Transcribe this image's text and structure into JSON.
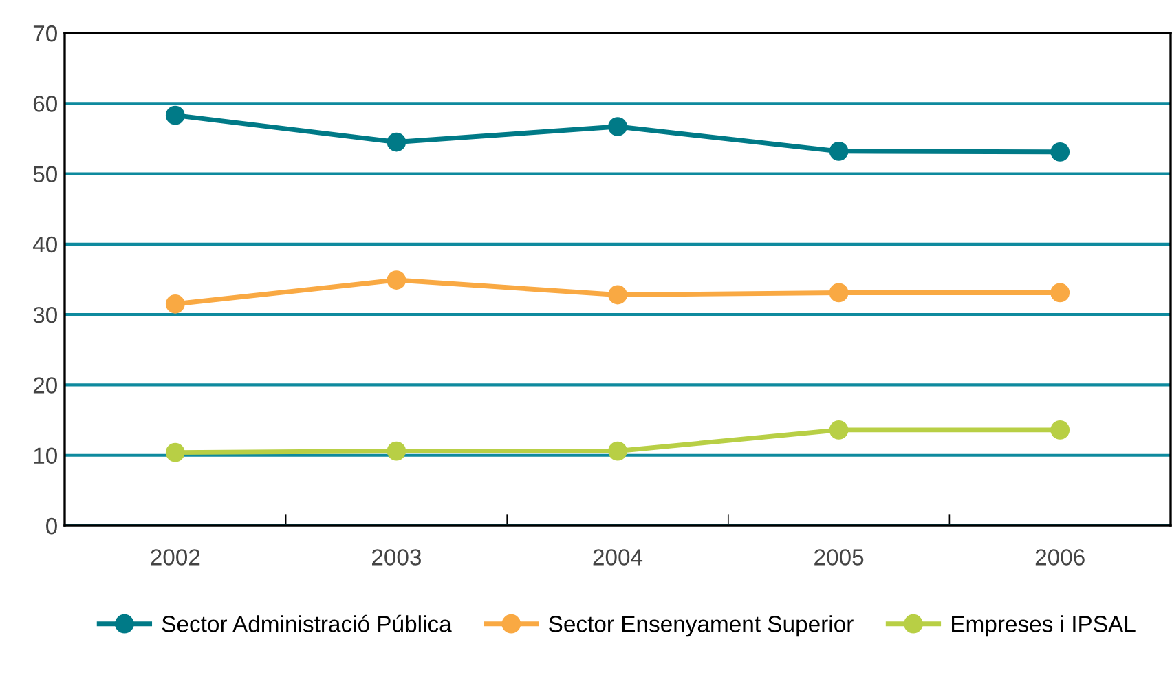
{
  "chart_data": {
    "type": "line",
    "categories": [
      "2002",
      "2003",
      "2004",
      "2005",
      "2006"
    ],
    "series": [
      {
        "name": "Sector Administració Pública",
        "color": "#007a87",
        "values": [
          58.3,
          54.5,
          56.7,
          53.2,
          53.1
        ]
      },
      {
        "name": "Sector Ensenyament Superior",
        "color": "#f9a943",
        "values": [
          31.5,
          34.9,
          32.8,
          33.1,
          33.1
        ]
      },
      {
        "name": "Empreses i IPSAL",
        "color": "#b8cf45",
        "values": [
          10.4,
          10.6,
          10.6,
          13.6,
          13.6
        ]
      }
    ],
    "ylim": [
      0,
      70
    ],
    "yticks": [
      0,
      10,
      20,
      30,
      40,
      50,
      60,
      70
    ],
    "grid": "y",
    "legend": "bottom",
    "marker": "circle",
    "line_style": "solid"
  }
}
